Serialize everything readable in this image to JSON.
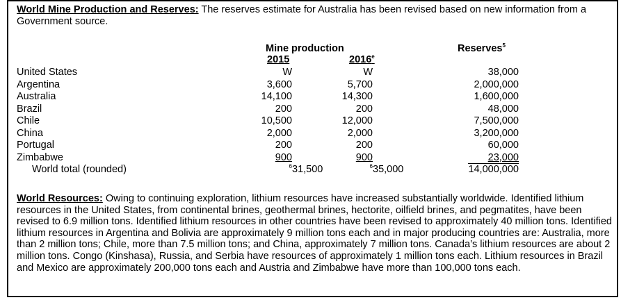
{
  "intro": {
    "heading": "World Mine Production and Reserves:",
    "text": "The reserves estimate for Australia has been revised based on new information from a Government source."
  },
  "table": {
    "mine_production_label": "Mine production",
    "year_2015": "2015",
    "year_2016": "2016",
    "year_2016_sup": "e",
    "reserves_label": "Reserves",
    "reserves_sup": "5",
    "rows": [
      {
        "country": "United States",
        "p2015": "W",
        "p2016": "W",
        "reserves": "38,000"
      },
      {
        "country": "Argentina",
        "p2015": "3,600",
        "p2016": "5,700",
        "reserves": "2,000,000"
      },
      {
        "country": "Australia",
        "p2015": "14,100",
        "p2016": "14,300",
        "reserves": "1,600,000"
      },
      {
        "country": "Brazil",
        "p2015": "200",
        "p2016": "200",
        "reserves": "48,000"
      },
      {
        "country": "Chile",
        "p2015": "10,500",
        "p2016": "12,000",
        "reserves": "7,500,000"
      },
      {
        "country": "China",
        "p2015": "2,000",
        "p2016": "2,000",
        "reserves": "3,200,000"
      },
      {
        "country": "Portugal",
        "p2015": "200",
        "p2016": "200",
        "reserves": "60,000"
      },
      {
        "country": "Zimbabwe",
        "p2015": "900",
        "p2016": "900",
        "reserves": "23,000"
      }
    ],
    "total": {
      "label": "World total (rounded)",
      "p2015_sup": "6",
      "p2015": "31,500",
      "p2016_sup": "6",
      "p2016": "35,000",
      "reserves": "14,000,000"
    }
  },
  "resources": {
    "heading": "World Resources:",
    "text": "Owing to continuing exploration, lithium resources have increased substantially worldwide. Identified lithium resources in the United States, from continental brines, geothermal brines, hectorite, oilfield brines, and pegmatites, have been revised to 6.9 million tons. Identified lithium resources in other countries have been revised to approximately 40 million tons. Identified lithium resources in Argentina and Bolivia are approximately 9 million tons each and in major producing countries are: Australia, more than 2 million tons; Chile, more than 7.5 million tons; and China, approximately 7 million tons. Canada’s lithium resources are about 2 million tons. Congo (Kinshasa), Russia, and Serbia have resources of approximately 1 million tons each. Lithium resources in Brazil and Mexico are approximately 200,000 tons each and Austria and Zimbabwe have more than 100,000 tons each."
  }
}
